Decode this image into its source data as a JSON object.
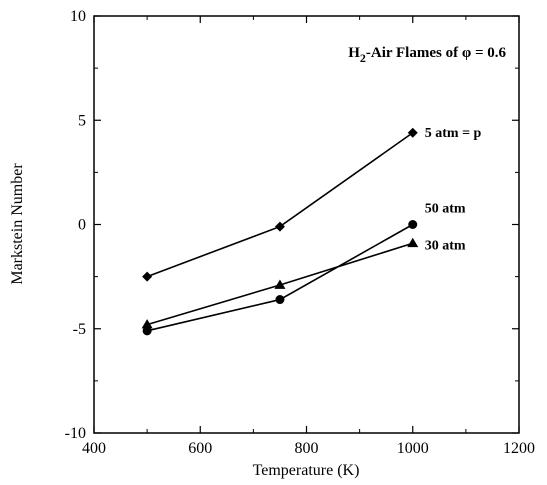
{
  "chart_data": {
    "type": "line",
    "title": "",
    "annotation": {
      "prefix": "H",
      "subscript": "2",
      "suffix": "-Air Flames of φ = 0.6"
    },
    "xlabel": "Temperature (K)",
    "ylabel": "Markstein Number",
    "xlim": [
      400,
      1200
    ],
    "ylim": [
      -10,
      10
    ],
    "xticks": [
      400,
      600,
      800,
      1000,
      1200
    ],
    "yticks": [
      -10,
      -5,
      0,
      5,
      10
    ],
    "xtick_labels": [
      "400",
      "600",
      "800",
      "1000",
      "1200"
    ],
    "ytick_labels": [
      "-10",
      "-5",
      "0",
      "5",
      "10"
    ],
    "grid": false,
    "series": [
      {
        "label": "5 atm = p",
        "marker": "diamond",
        "x": [
          500,
          750,
          1000
        ],
        "y": [
          -2.5,
          -0.1,
          4.4
        ]
      },
      {
        "label": "50 atm",
        "marker": "circle",
        "x": [
          500,
          750,
          1000
        ],
        "y": [
          -5.1,
          -3.6,
          0.0
        ]
      },
      {
        "label": "30 atm",
        "marker": "triangle",
        "x": [
          500,
          750,
          1000
        ],
        "y": [
          -4.8,
          -2.9,
          -0.9
        ]
      }
    ]
  }
}
